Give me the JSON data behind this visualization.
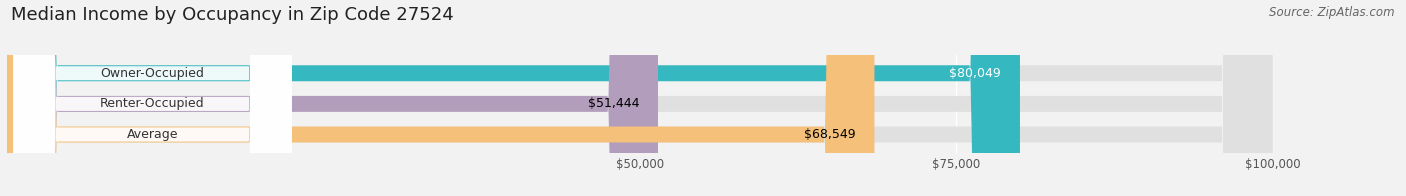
{
  "title": "Median Income by Occupancy in Zip Code 27524",
  "source": "Source: ZipAtlas.com",
  "categories": [
    "Owner-Occupied",
    "Renter-Occupied",
    "Average"
  ],
  "values": [
    80049,
    51444,
    68549
  ],
  "bar_colors": [
    "#35b8c0",
    "#b39dbd",
    "#f5c07a"
  ],
  "bar_labels": [
    "$80,049",
    "$51,444",
    "$68,549"
  ],
  "label_text_colors": [
    "white",
    "black",
    "black"
  ],
  "xlim": [
    0,
    110000
  ],
  "xaxis_max": 100000,
  "xtick_positions": [
    50000,
    75000,
    100000
  ],
  "xticklabels": [
    "$50,000",
    "$75,000",
    "$100,000"
  ],
  "background_color": "#f2f2f2",
  "bar_bg_color": "#e0e0e0",
  "title_fontsize": 13,
  "source_fontsize": 8.5,
  "label_fontsize": 9,
  "value_fontsize": 9,
  "bar_height": 0.52,
  "figsize": [
    14.06,
    1.96
  ],
  "dpi": 100
}
